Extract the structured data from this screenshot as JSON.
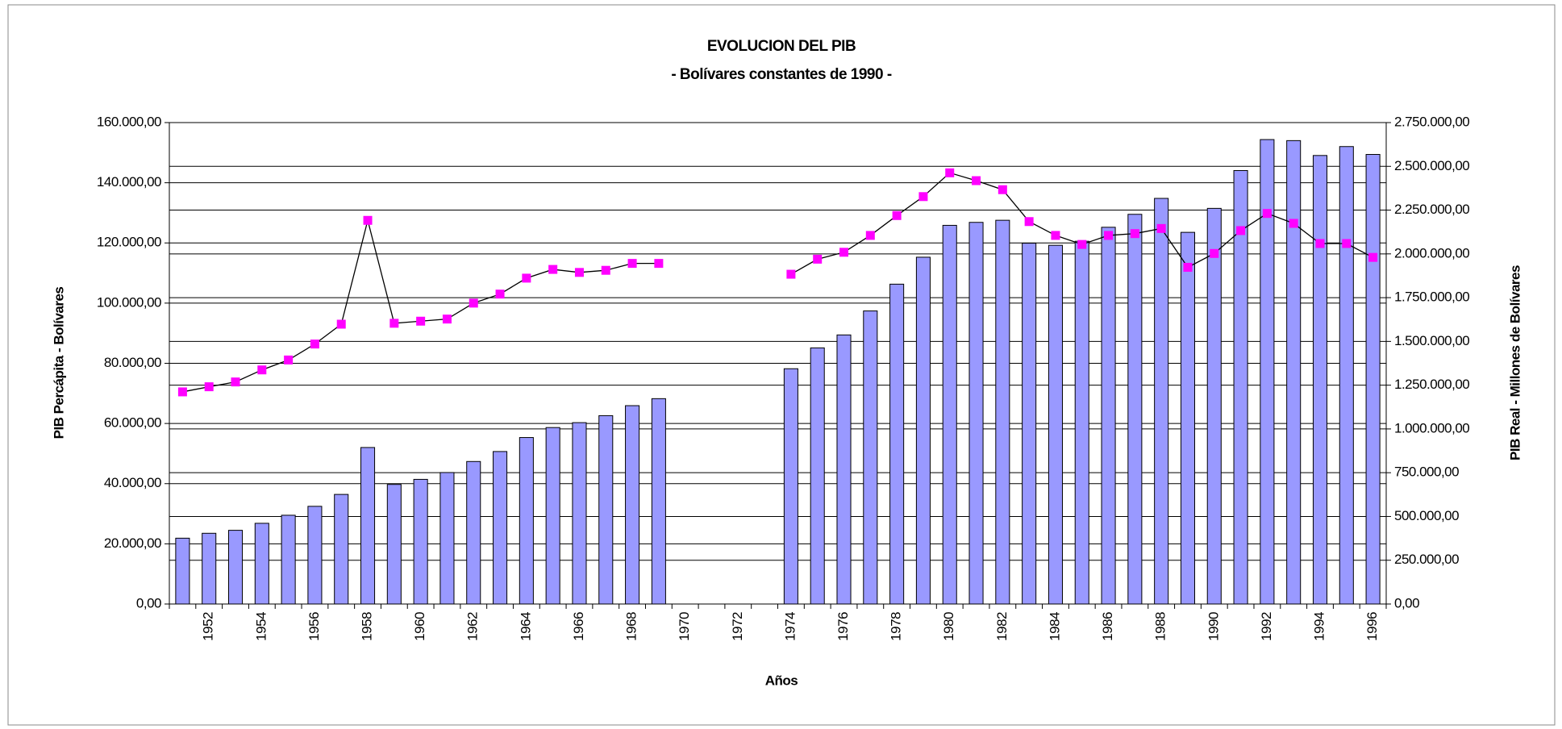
{
  "chart_data": {
    "type": "bar_line",
    "title": "EVOLUCION DEL PIB",
    "subtitle": "- Bolívares constantes de 1990 -",
    "x_label": "Años",
    "y_label": "PIB Percápita - Bolívares",
    "y2_label": "PIB Real - Millones de Bolívares",
    "categories": [
      null,
      "1952",
      null,
      "1954",
      null,
      "1956",
      null,
      "1958",
      null,
      "1960",
      null,
      "1962",
      null,
      "1964",
      null,
      "1966",
      null,
      "1968",
      null,
      "1970",
      null,
      "1972",
      null,
      "1974",
      null,
      "1976",
      null,
      "1978",
      null,
      "1980",
      null,
      "1982",
      null,
      "1984",
      null,
      "1986",
      null,
      "1988",
      null,
      "1990",
      null,
      "1992",
      null,
      "1994",
      null,
      "1996"
    ],
    "series": [
      {
        "type": "bar",
        "axis": "y2",
        "color": "#9999ff",
        "values": [
          376000,
          404000,
          421000,
          461000,
          507000,
          558000,
          626000,
          894000,
          683000,
          712000,
          751000,
          814000,
          871000,
          951000,
          1008000,
          1036000,
          1076000,
          1133000,
          1173000,
          null,
          null,
          null,
          null,
          1344000,
          1463000,
          1537000,
          1674000,
          1827000,
          1981000,
          2163000,
          2180000,
          2192000,
          2061000,
          2049000,
          2072000,
          2152000,
          2226000,
          2317000,
          2123000,
          2260000,
          2476000,
          2653000,
          2647000,
          2562000,
          2613000,
          2568000
        ]
      },
      {
        "type": "line",
        "axis": "y",
        "color": "#ff00ff",
        "values": [
          70500,
          72200,
          73800,
          77800,
          81100,
          86400,
          93000,
          127500,
          93300,
          94000,
          94700,
          100000,
          103000,
          108300,
          111200,
          110200,
          110900,
          113200,
          113200,
          null,
          null,
          null,
          null,
          109600,
          114600,
          116900,
          122500,
          129100,
          135400,
          143300,
          140700,
          137700,
          127100,
          122500,
          119500,
          122500,
          123100,
          124800,
          111900,
          116500,
          124100,
          129800,
          126500,
          119800,
          119800,
          115200
        ]
      }
    ],
    "ylim": [
      0,
      160000
    ],
    "yticks": [
      {
        "value": 0,
        "label": "0,00"
      },
      {
        "value": 20000,
        "label": "20.000,00"
      },
      {
        "value": 40000,
        "label": "40.000,00"
      },
      {
        "value": 60000,
        "label": "60.000,00"
      },
      {
        "value": 80000,
        "label": "80.000,00"
      },
      {
        "value": 100000,
        "label": "100.000,00"
      },
      {
        "value": 120000,
        "label": "120.000,00"
      },
      {
        "value": 140000,
        "label": "140.000,00"
      },
      {
        "value": 160000,
        "label": "160.000,00"
      }
    ],
    "y2lim": [
      0,
      2750000
    ],
    "y2ticks": [
      {
        "value": 0,
        "label": "0,00"
      },
      {
        "value": 250000,
        "label": "250.000,00"
      },
      {
        "value": 500000,
        "label": "500.000,00"
      },
      {
        "value": 750000,
        "label": "750.000,00"
      },
      {
        "value": 1000000,
        "label": "1.000.000,00"
      },
      {
        "value": 1250000,
        "label": "1.250.000,00"
      },
      {
        "value": 1500000,
        "label": "1.500.000,00"
      },
      {
        "value": 1750000,
        "label": "1.750.000,00"
      },
      {
        "value": 2000000,
        "label": "2.000.000,00"
      },
      {
        "value": 2250000,
        "label": "2.250.000,00"
      },
      {
        "value": 2500000,
        "label": "2.500.000,00"
      },
      {
        "value": 2750000,
        "label": "2.750.000,00"
      }
    ],
    "grid": true
  }
}
